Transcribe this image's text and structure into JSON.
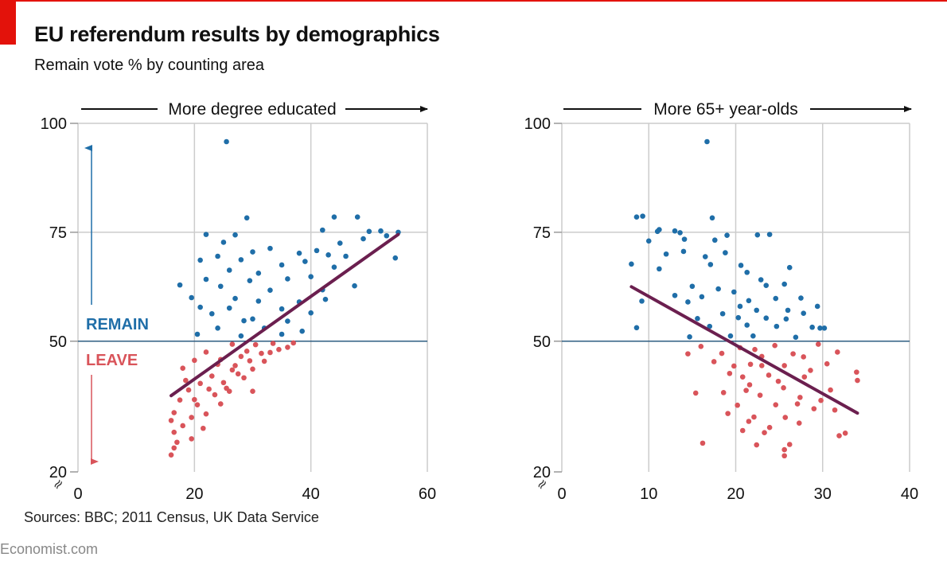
{
  "header": {
    "title": "EU referendum results by demographics",
    "subtitle": "Remain vote % by counting area"
  },
  "footer": {
    "source": "Sources: BBC; 2011 Census, UK Data Service",
    "brand": "Economist.com"
  },
  "colors": {
    "remain": "#1f6ea8",
    "leave": "#d9545a",
    "trend": "#6b1f4f",
    "grid": "#cccccc",
    "axis_line": "#2e5d82",
    "accent": "#e3120b"
  },
  "chart_data": [
    {
      "type": "scatter",
      "direction_label": "More degree educated",
      "xlim": [
        0,
        60
      ],
      "ylim": [
        20,
        100
      ],
      "x_ticks": [
        "0",
        "20",
        "40",
        "60"
      ],
      "y_ticks": [
        "20",
        "50",
        "75",
        "100"
      ],
      "axis_break": "≈",
      "grid": true,
      "threshold": 50,
      "labels": {
        "remain": "REMAIN",
        "leave": "LEAVE"
      },
      "trend": [
        [
          16,
          37.5
        ],
        [
          55,
          74.5
        ]
      ],
      "points": [
        [
          25.5,
          95.8
        ],
        [
          29,
          78.3
        ],
        [
          22,
          74.5
        ],
        [
          27,
          74.4
        ],
        [
          44,
          78.5
        ],
        [
          48,
          78.5
        ],
        [
          42,
          75.5
        ],
        [
          50,
          75.2
        ],
        [
          52,
          75.3
        ],
        [
          55,
          75
        ],
        [
          45,
          72.5
        ],
        [
          49,
          73.5
        ],
        [
          53,
          74.2
        ],
        [
          25,
          72.7
        ],
        [
          30,
          70.5
        ],
        [
          33,
          71.3
        ],
        [
          38,
          70.2
        ],
        [
          41,
          70.8
        ],
        [
          43,
          69.8
        ],
        [
          54.5,
          69.1
        ],
        [
          24,
          69.5
        ],
        [
          21,
          68.6
        ],
        [
          28,
          68.7
        ],
        [
          35,
          67.5
        ],
        [
          39,
          68.3
        ],
        [
          44,
          67
        ],
        [
          46,
          69.5
        ],
        [
          26,
          66.3
        ],
        [
          31,
          65.6
        ],
        [
          22,
          64.2
        ],
        [
          29.5,
          63.9
        ],
        [
          36,
          64.3
        ],
        [
          40,
          64.8
        ],
        [
          17.5,
          62.9
        ],
        [
          24.5,
          62.6
        ],
        [
          33,
          61.7
        ],
        [
          42,
          61.8
        ],
        [
          47.5,
          62.7
        ],
        [
          19.5,
          60
        ],
        [
          27,
          59.8
        ],
        [
          31,
          59.2
        ],
        [
          38,
          59
        ],
        [
          42.5,
          59.6
        ],
        [
          21,
          57.8
        ],
        [
          26,
          57.6
        ],
        [
          35,
          57.4
        ],
        [
          40,
          56.5
        ],
        [
          23,
          56.3
        ],
        [
          30,
          55.1
        ],
        [
          28.5,
          54.7
        ],
        [
          36,
          54.6
        ],
        [
          24,
          53
        ],
        [
          32,
          53
        ],
        [
          20.5,
          51.6
        ],
        [
          38.5,
          52.3
        ],
        [
          28,
          51.2
        ],
        [
          35,
          51.6
        ],
        [
          26.5,
          49.3
        ],
        [
          30.5,
          49.2
        ],
        [
          22,
          47.5
        ],
        [
          28,
          46.5
        ],
        [
          36,
          48.6
        ],
        [
          24.5,
          45.8
        ],
        [
          32,
          45.4
        ],
        [
          20,
          45.6
        ],
        [
          26.5,
          43.4
        ],
        [
          30,
          43.6
        ],
        [
          18,
          43.8
        ],
        [
          23,
          42
        ],
        [
          28.5,
          41.6
        ],
        [
          21,
          40.3
        ],
        [
          25.5,
          39.2
        ],
        [
          30,
          38.5
        ],
        [
          19,
          38.8
        ],
        [
          23.5,
          37.7
        ],
        [
          17.5,
          36.5
        ],
        [
          20.5,
          35.4
        ],
        [
          24.5,
          35.6
        ],
        [
          16.5,
          33.6
        ],
        [
          19.5,
          32.5
        ],
        [
          22,
          33.3
        ],
        [
          16,
          31.8
        ],
        [
          18,
          30.6
        ],
        [
          21.5,
          30
        ],
        [
          16.5,
          29.1
        ],
        [
          19.5,
          27.6
        ],
        [
          17,
          26.8
        ],
        [
          16.5,
          25.5
        ],
        [
          16,
          23.9
        ],
        [
          33,
          47.4
        ],
        [
          27,
          44.4
        ],
        [
          34.5,
          48.1
        ],
        [
          29.5,
          45.5
        ],
        [
          31.5,
          47.2
        ],
        [
          25,
          40.5
        ],
        [
          27.5,
          42.5
        ],
        [
          33.5,
          49.5
        ],
        [
          37,
          49.6
        ],
        [
          29,
          47.7
        ],
        [
          22.5,
          39
        ],
        [
          20,
          36.6
        ],
        [
          26,
          38.5
        ],
        [
          24,
          44.7
        ],
        [
          18.5,
          41
        ]
      ]
    },
    {
      "type": "scatter",
      "direction_label": "More 65+ year-olds",
      "xlim": [
        0,
        40
      ],
      "ylim": [
        20,
        100
      ],
      "x_ticks": [
        "0",
        "10",
        "20",
        "30",
        "40"
      ],
      "y_ticks": [
        "20",
        "50",
        "75",
        "100"
      ],
      "axis_break": "≈",
      "grid": true,
      "threshold": 50,
      "trend": [
        [
          8,
          62.5
        ],
        [
          34,
          33.5
        ]
      ],
      "points": [
        [
          16.7,
          95.8
        ],
        [
          8.6,
          78.5
        ],
        [
          9.3,
          78.7
        ],
        [
          17.3,
          78.3
        ],
        [
          11,
          75.2
        ],
        [
          13,
          75.3
        ],
        [
          13.6,
          74.9
        ],
        [
          19,
          74.3
        ],
        [
          22.5,
          74.4
        ],
        [
          23.9,
          74.5
        ],
        [
          10,
          73
        ],
        [
          11.2,
          75.6
        ],
        [
          14.1,
          73.4
        ],
        [
          17.6,
          73.2
        ],
        [
          8,
          67.7
        ],
        [
          12,
          70
        ],
        [
          14,
          70.6
        ],
        [
          16.5,
          69.4
        ],
        [
          18.8,
          70.3
        ],
        [
          20.6,
          67.4
        ],
        [
          26.2,
          66.9
        ],
        [
          11.2,
          66.6
        ],
        [
          17.1,
          67.6
        ],
        [
          21.3,
          65.8
        ],
        [
          22.9,
          64.1
        ],
        [
          15,
          62.6
        ],
        [
          18,
          62
        ],
        [
          19.8,
          61.3
        ],
        [
          23.5,
          62.8
        ],
        [
          25.6,
          63.1
        ],
        [
          13,
          60.5
        ],
        [
          16.1,
          60.2
        ],
        [
          21.5,
          59.3
        ],
        [
          24.6,
          59.8
        ],
        [
          27.5,
          59.9
        ],
        [
          9.2,
          59.2
        ],
        [
          14.5,
          59
        ],
        [
          20.5,
          58
        ],
        [
          22.4,
          57.1
        ],
        [
          26,
          57.1
        ],
        [
          29.4,
          58
        ],
        [
          18.5,
          56.3
        ],
        [
          15.6,
          55.2
        ],
        [
          20.3,
          55.4
        ],
        [
          23.5,
          55.3
        ],
        [
          25.8,
          55.1
        ],
        [
          27.8,
          56.4
        ],
        [
          17,
          53.4
        ],
        [
          21.3,
          53.7
        ],
        [
          24.7,
          53.4
        ],
        [
          28.8,
          53.2
        ],
        [
          8.6,
          53.1
        ],
        [
          14.7,
          51
        ],
        [
          19.4,
          51.2
        ],
        [
          22,
          51.2
        ],
        [
          26.9,
          50.9
        ],
        [
          29.7,
          53
        ],
        [
          30.2,
          53
        ],
        [
          16,
          48.8
        ],
        [
          20.5,
          48.5
        ],
        [
          24.5,
          49
        ],
        [
          29.5,
          49.3
        ],
        [
          14.5,
          47.1
        ],
        [
          18.4,
          47.2
        ],
        [
          23,
          46.5
        ],
        [
          27.8,
          46.4
        ],
        [
          31.7,
          47.5
        ],
        [
          17.5,
          45.3
        ],
        [
          21.7,
          44.7
        ],
        [
          25.6,
          44.4
        ],
        [
          30.5,
          44.8
        ],
        [
          33.9,
          42.9
        ],
        [
          19.3,
          42.6
        ],
        [
          23.8,
          42.2
        ],
        [
          27.9,
          41.8
        ],
        [
          21.6,
          40
        ],
        [
          25.5,
          39.3
        ],
        [
          30.9,
          38.8
        ],
        [
          34,
          41
        ],
        [
          15.4,
          38.1
        ],
        [
          18.6,
          38.2
        ],
        [
          22.8,
          37.6
        ],
        [
          27.4,
          37.1
        ],
        [
          20.2,
          35.3
        ],
        [
          24.6,
          35.4
        ],
        [
          29,
          34.5
        ],
        [
          31.4,
          34.2
        ],
        [
          19.1,
          33.4
        ],
        [
          22.1,
          32.6
        ],
        [
          25.7,
          32.5
        ],
        [
          21.5,
          31.6
        ],
        [
          23.9,
          30.2
        ],
        [
          27.3,
          31.2
        ],
        [
          20.8,
          29.5
        ],
        [
          23.3,
          29
        ],
        [
          32.6,
          28.9
        ],
        [
          31.9,
          28.3
        ],
        [
          16.2,
          26.6
        ],
        [
          22.4,
          26.2
        ],
        [
          26.2,
          26.3
        ],
        [
          25.6,
          25.1
        ],
        [
          25.6,
          23.7
        ],
        [
          22.2,
          48.1
        ],
        [
          26.6,
          47.1
        ],
        [
          19.8,
          44.3
        ],
        [
          28.6,
          43.3
        ],
        [
          23,
          44.4
        ],
        [
          24.9,
          40.8
        ],
        [
          21.2,
          38.7
        ],
        [
          27.1,
          35.6
        ],
        [
          29.8,
          36.4
        ],
        [
          20.8,
          41.8
        ]
      ]
    }
  ]
}
